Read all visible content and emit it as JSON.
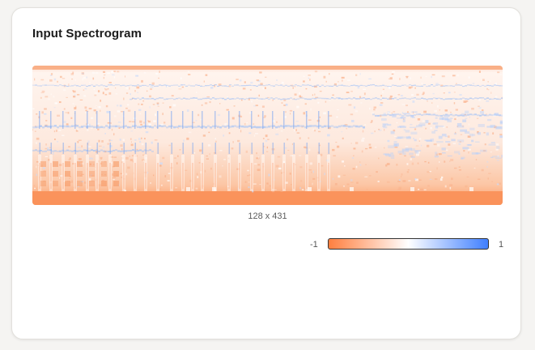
{
  "panel": {
    "title": "Input Spectrogram",
    "dimensions": "128 x 431"
  },
  "colorbar": {
    "min_label": "-1",
    "max_label": "1",
    "colors": [
      "#ff7f3f",
      "#ffffff",
      "#3f7fff"
    ]
  },
  "spectrogram": {
    "rows": 128,
    "cols": 431,
    "value_range": [
      -1,
      1
    ]
  }
}
